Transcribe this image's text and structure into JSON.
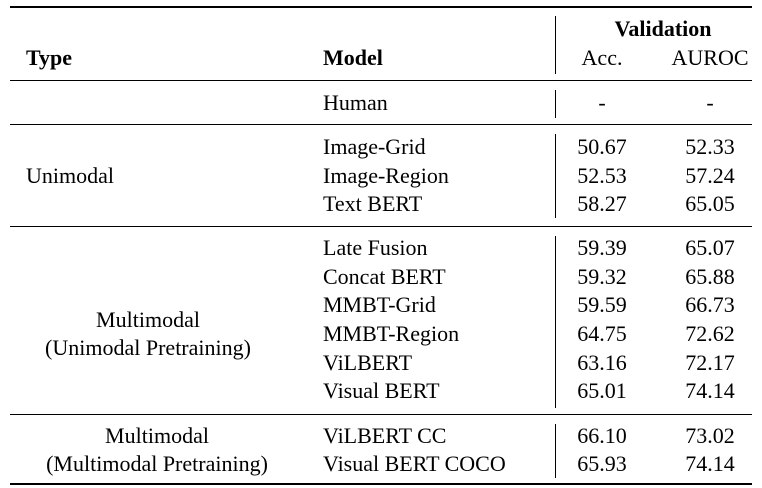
{
  "header": {
    "type": "Type",
    "model": "Model",
    "validation": "Validation",
    "acc": "Acc.",
    "auroc": "AUROC"
  },
  "human": {
    "model": "Human",
    "acc": "-",
    "auroc": "-"
  },
  "groups": [
    {
      "type_lines": [
        "Unimodal"
      ],
      "rows": [
        {
          "model": "Image-Grid",
          "acc": "50.67",
          "auroc": "52.33"
        },
        {
          "model": "Image-Region",
          "acc": "52.53",
          "auroc": "57.24"
        },
        {
          "model": "Text BERT",
          "acc": "58.27",
          "auroc": "65.05"
        }
      ]
    },
    {
      "type_lines": [
        "Multimodal",
        "(Unimodal Pretraining)"
      ],
      "rows": [
        {
          "model": "Late Fusion",
          "acc": "59.39",
          "auroc": "65.07"
        },
        {
          "model": "Concat BERT",
          "acc": "59.32",
          "auroc": "65.88"
        },
        {
          "model": "MMBT-Grid",
          "acc": "59.59",
          "auroc": "66.73"
        },
        {
          "model": "MMBT-Region",
          "acc": "64.75",
          "auroc": "72.62"
        },
        {
          "model": "ViLBERT",
          "acc": "63.16",
          "auroc": "72.17"
        },
        {
          "model": "Visual BERT",
          "acc": "65.01",
          "auroc": "74.14"
        }
      ]
    },
    {
      "type_lines": [
        "Multimodal",
        "(Multimodal Pretraining)"
      ],
      "rows": [
        {
          "model": "ViLBERT CC",
          "acc": "66.10",
          "auroc": "73.02"
        },
        {
          "model": "Visual BERT COCO",
          "acc": "65.93",
          "auroc": "74.14"
        }
      ]
    }
  ]
}
